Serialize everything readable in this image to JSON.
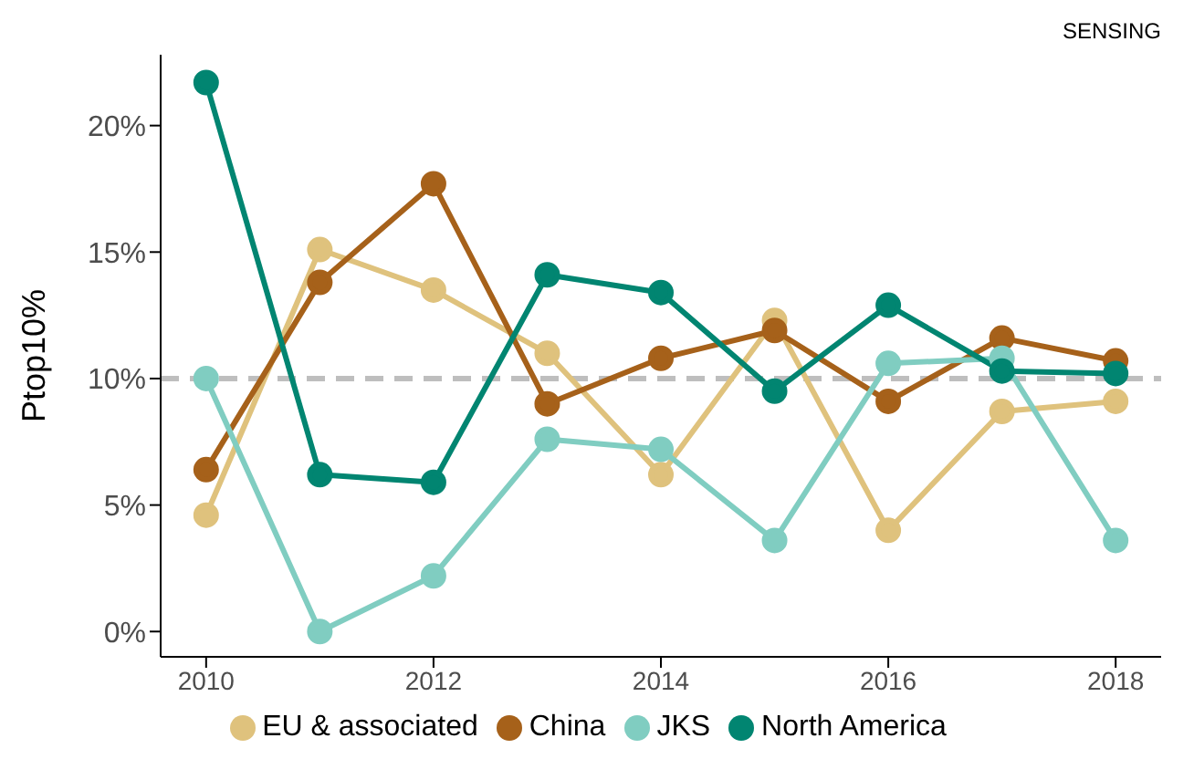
{
  "chart_data": {
    "type": "line",
    "title": "SENSING",
    "ylabel": "Ptop10%",
    "x": [
      2010,
      2011,
      2012,
      2013,
      2014,
      2015,
      2016,
      2017,
      2018
    ],
    "series": [
      {
        "name": "EU & associated",
        "color": "#dfc27d",
        "values": [
          4.6,
          15.1,
          13.5,
          11.0,
          6.2,
          12.3,
          4.0,
          8.7,
          9.1
        ]
      },
      {
        "name": "China",
        "color": "#a6611a",
        "values": [
          6.4,
          13.8,
          17.7,
          9.0,
          10.8,
          11.9,
          9.1,
          11.6,
          10.7
        ]
      },
      {
        "name": "JKS",
        "color": "#80cdc1",
        "values": [
          10.0,
          0,
          2.2,
          7.6,
          7.2,
          3.6,
          10.6,
          10.8,
          3.6
        ]
      },
      {
        "name": "North America",
        "color": "#018571",
        "values": [
          21.7,
          6.2,
          5.9,
          14.1,
          13.4,
          9.5,
          12.9,
          10.3,
          10.2
        ]
      }
    ],
    "xlim": [
      2009.6,
      2018.4
    ],
    "xticks": [
      2010,
      2012,
      2014,
      2016,
      2018
    ],
    "ylim": [
      -1,
      22.8
    ],
    "yticks": [
      {
        "value": 0,
        "label": "0%"
      },
      {
        "value": 5,
        "label": "5%"
      },
      {
        "value": 10,
        "label": "10%"
      },
      {
        "value": 15,
        "label": "15%"
      },
      {
        "value": 20,
        "label": "20%"
      }
    ],
    "ref_lines": [
      {
        "axis": "y",
        "value": 10,
        "color": "#bebebe",
        "line_style": "dashed"
      }
    ],
    "grid": false,
    "legend": "bottom",
    "marker": "circle",
    "line_style": "solid"
  }
}
